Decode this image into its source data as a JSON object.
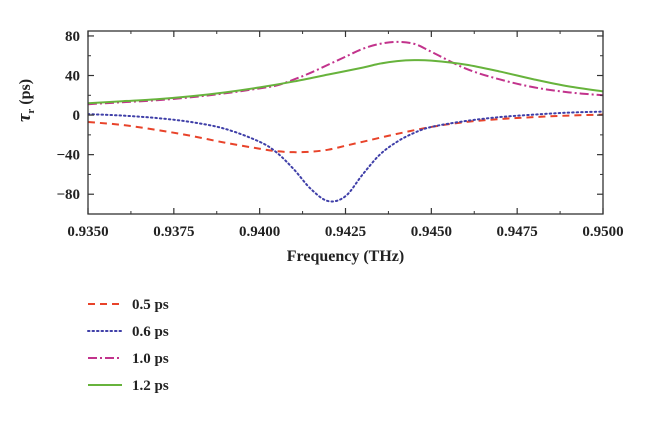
{
  "chart_data": {
    "type": "line",
    "title": "",
    "xlabel": "Frequency (THz)",
    "ylabel": "τr (ps)",
    "ylabel_main": "τ",
    "ylabel_sub": "r",
    "ylabel_rest": " (ps)",
    "xlim": [
      0.935,
      0.95
    ],
    "ylim": [
      -100,
      85
    ],
    "xticks": [
      0.935,
      0.9375,
      0.94,
      0.9425,
      0.945,
      0.9475,
      0.95
    ],
    "xtick_labels": [
      "0.9350",
      "0.9375",
      "0.9400",
      "0.9425",
      "0.9450",
      "0.9475",
      "0.9500"
    ],
    "yticks": [
      -80,
      -40,
      0,
      40,
      80
    ],
    "ytick_labels": [
      "−80",
      "−40",
      "0",
      "40",
      "80"
    ],
    "grid": false,
    "legend_position": "below",
    "series": [
      {
        "name": "0.5 ps",
        "color": "#e8432a",
        "dash": "dashed",
        "x": [
          0.935,
          0.936,
          0.937,
          0.938,
          0.939,
          0.94,
          0.9405,
          0.941,
          0.9415,
          0.942,
          0.9425,
          0.943,
          0.944,
          0.945,
          0.946,
          0.947,
          0.948,
          0.949,
          0.95
        ],
        "y": [
          -7,
          -10,
          -15,
          -21,
          -28,
          -34,
          -36.5,
          -37.5,
          -37,
          -35,
          -31,
          -27,
          -19,
          -12,
          -7,
          -4,
          -2,
          -0.5,
          0.5
        ]
      },
      {
        "name": "0.6 ps",
        "color": "#3f3fa8",
        "dash": "dotted",
        "x": [
          0.935,
          0.936,
          0.937,
          0.938,
          0.939,
          0.94,
          0.9405,
          0.941,
          0.9415,
          0.942,
          0.9425,
          0.943,
          0.9435,
          0.944,
          0.9445,
          0.945,
          0.946,
          0.947,
          0.948,
          0.949,
          0.95
        ],
        "y": [
          1,
          -0.5,
          -3,
          -7,
          -14,
          -27,
          -38,
          -55,
          -75,
          -87,
          -82,
          -60,
          -40,
          -27,
          -18,
          -12,
          -6,
          -2,
          0.5,
          2.5,
          3.5
        ]
      },
      {
        "name": "1.0 ps",
        "color": "#c2338c",
        "dash": "dashdot",
        "x": [
          0.935,
          0.936,
          0.937,
          0.938,
          0.939,
          0.94,
          0.9405,
          0.941,
          0.9415,
          0.942,
          0.9425,
          0.943,
          0.9435,
          0.944,
          0.9445,
          0.945,
          0.946,
          0.947,
          0.948,
          0.949,
          0.95
        ],
        "y": [
          11,
          13,
          15,
          18,
          22,
          27,
          30,
          36,
          43,
          51,
          59,
          67,
          72,
          74,
          72,
          64,
          47,
          36,
          28,
          23,
          20
        ]
      },
      {
        "name": "1.2 ps",
        "color": "#67b33c",
        "dash": "solid",
        "x": [
          0.935,
          0.936,
          0.937,
          0.938,
          0.939,
          0.94,
          0.941,
          0.942,
          0.943,
          0.9435,
          0.944,
          0.9445,
          0.945,
          0.946,
          0.947,
          0.948,
          0.949,
          0.95
        ],
        "y": [
          12,
          14,
          16,
          19,
          23,
          28,
          34,
          41,
          48,
          52,
          54.5,
          55.5,
          55,
          51,
          44,
          36,
          29,
          24
        ]
      }
    ]
  }
}
